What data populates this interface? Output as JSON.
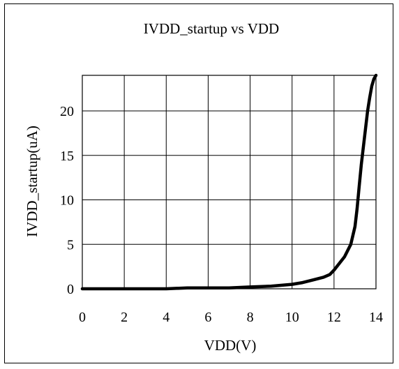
{
  "chart_data": {
    "type": "line",
    "title": "IVDD_startup vs VDD",
    "xlabel": "VDD(V)",
    "ylabel": "IVDD_startup(uA)",
    "xlim": [
      0,
      14
    ],
    "ylim": [
      0,
      24
    ],
    "xticks": [
      0,
      2,
      4,
      6,
      8,
      10,
      12,
      14
    ],
    "yticks": [
      0,
      5,
      10,
      15,
      20
    ],
    "grid": true,
    "legend": "none",
    "line_color": "#000000",
    "series": [
      {
        "x": [
          0,
          2,
          4,
          5,
          6,
          7,
          8,
          9,
          10,
          10.5,
          11,
          11.5,
          11.8,
          12,
          12.5,
          12.8,
          13.0,
          13.1,
          13.2,
          13.3,
          13.4,
          13.5,
          13.6,
          13.7,
          13.8,
          13.9,
          14.0
        ],
        "y": [
          0,
          0,
          0,
          0.1,
          0.1,
          0.1,
          0.2,
          0.3,
          0.5,
          0.7,
          1.0,
          1.3,
          1.6,
          2.1,
          3.6,
          5.0,
          7.0,
          9.0,
          11.5,
          14.0,
          16.0,
          18.0,
          20.0,
          21.5,
          22.8,
          23.6,
          24.0
        ]
      }
    ]
  }
}
